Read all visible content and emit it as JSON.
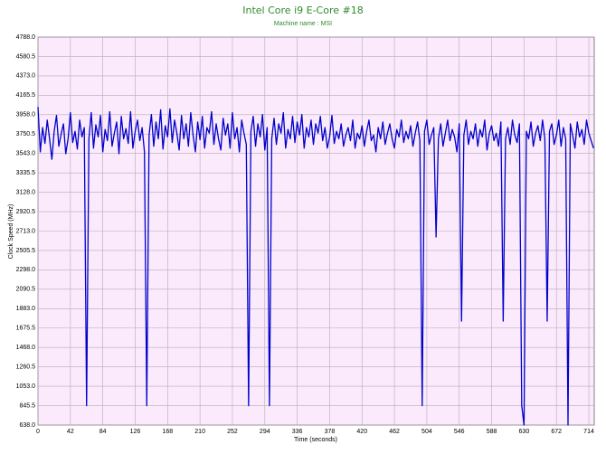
{
  "chart_data": {
    "type": "line",
    "title": "Intel Core i9 E-Core #18",
    "subtitle": "Machine name : MSI",
    "x_label": "Time (seconds)",
    "y_label": "Clock Speed (MHz)",
    "grid": true,
    "xlim": [
      0,
      721
    ],
    "ylim": [
      638,
      4788
    ],
    "xticks": [
      0,
      42,
      84,
      126,
      168,
      210,
      252,
      294,
      336,
      378,
      420,
      462,
      504,
      546,
      588,
      630,
      672,
      714
    ],
    "yticks": [
      {
        "value": 638,
        "label": "638.0"
      },
      845.5,
      {
        "value": 1053,
        "label": "1053.0"
      },
      1260.5,
      {
        "value": 1468,
        "label": "1468.0"
      },
      1675.5,
      {
        "value": 1883,
        "label": "1883.0"
      },
      2090.5,
      {
        "value": 2298,
        "label": "2298.0"
      },
      2505.5,
      {
        "value": 2713,
        "label": "2713.0"
      },
      2920.5,
      {
        "value": 3128,
        "label": "3128.0"
      },
      3335.5,
      {
        "value": 3543,
        "label": "3543.0"
      },
      3750.5,
      {
        "value": 3958,
        "label": "3958.0"
      },
      4165.5,
      {
        "value": 4373,
        "label": "4373.0"
      },
      4580.5,
      {
        "value": 4788,
        "label": "4788.0"
      }
    ],
    "x": [
      0,
      3,
      6,
      9,
      12,
      15,
      18,
      21,
      24,
      27,
      30,
      33,
      36,
      39,
      42,
      45,
      48,
      51,
      54,
      57,
      60,
      63,
      66,
      69,
      72,
      75,
      78,
      81,
      84,
      87,
      90,
      93,
      96,
      99,
      102,
      105,
      108,
      111,
      114,
      117,
      120,
      123,
      126,
      129,
      132,
      135,
      138,
      141,
      144,
      147,
      150,
      153,
      156,
      159,
      162,
      165,
      168,
      171,
      174,
      177,
      180,
      183,
      186,
      189,
      192,
      195,
      198,
      201,
      204,
      207,
      210,
      213,
      216,
      219,
      222,
      225,
      228,
      231,
      234,
      237,
      240,
      243,
      246,
      249,
      252,
      255,
      258,
      261,
      264,
      267,
      270,
      273,
      276,
      279,
      282,
      285,
      288,
      291,
      294,
      297,
      300,
      303,
      306,
      309,
      312,
      315,
      318,
      321,
      324,
      327,
      330,
      333,
      336,
      339,
      342,
      345,
      348,
      351,
      354,
      357,
      360,
      363,
      366,
      369,
      372,
      375,
      378,
      381,
      384,
      387,
      390,
      393,
      396,
      399,
      402,
      405,
      408,
      411,
      414,
      417,
      420,
      423,
      426,
      429,
      432,
      435,
      438,
      441,
      444,
      447,
      450,
      453,
      456,
      459,
      462,
      465,
      468,
      471,
      474,
      477,
      480,
      483,
      486,
      489,
      492,
      495,
      498,
      501,
      504,
      507,
      510,
      513,
      516,
      519,
      522,
      525,
      528,
      531,
      534,
      537,
      540,
      543,
      546,
      549,
      552,
      555,
      558,
      561,
      564,
      567,
      570,
      573,
      576,
      579,
      582,
      585,
      588,
      591,
      594,
      597,
      600,
      603,
      606,
      609,
      612,
      615,
      618,
      621,
      624,
      627,
      630,
      633,
      636,
      639,
      642,
      645,
      648,
      651,
      654,
      657,
      660,
      663,
      666,
      669,
      672,
      675,
      678,
      681,
      684,
      687,
      690,
      693,
      696,
      699,
      702,
      705,
      708,
      711,
      714,
      717,
      720
    ],
    "series": [
      {
        "color": "#0000cc",
        "values": [
          4040,
          3560,
          3820,
          3650,
          3900,
          3700,
          3480,
          3780,
          3950,
          3620,
          3750,
          3860,
          3540,
          3700,
          3980,
          3660,
          3780,
          3590,
          3900,
          3720,
          3820,
          845,
          3700,
          3980,
          3600,
          3850,
          3720,
          3950,
          3560,
          3800,
          3680,
          3990,
          3620,
          3760,
          3880,
          3540,
          3940,
          3700,
          3810,
          3650,
          3990,
          3600,
          3780,
          3900,
          3680,
          3820,
          3560,
          845,
          3740,
          3960,
          3620,
          3880,
          3700,
          4010,
          3590,
          3840,
          3720,
          4020,
          3660,
          3900,
          3760,
          3580,
          3950,
          3700,
          3860,
          3620,
          3980,
          3740,
          3560,
          3880,
          3690,
          3940,
          3600,
          3820,
          3760,
          3990,
          3640,
          3860,
          3700,
          3580,
          3920,
          3740,
          3860,
          3600,
          3980,
          3700,
          3820,
          3560,
          3900,
          3760,
          3640,
          845,
          3780,
          3940,
          3620,
          3860,
          3720,
          3960,
          3580,
          3820,
          845,
          3700,
          3920,
          3640,
          3860,
          3760,
          3980,
          3600,
          3800,
          3700,
          3940,
          3660,
          3880,
          3740,
          3960,
          3600,
          3820,
          3720,
          3900,
          3640,
          3860,
          3760,
          3940,
          3680,
          3820,
          3600,
          3720,
          3950,
          3650,
          3780,
          3700,
          3860,
          3620,
          3740,
          3820,
          3680,
          3900,
          3600,
          3760,
          3700,
          3840,
          3620,
          3780,
          3900,
          3680,
          3740,
          3560,
          3820,
          3700,
          3880,
          3640,
          3760,
          3860,
          3700,
          3600,
          3800,
          3720,
          3900,
          3660,
          3780,
          3700,
          3840,
          3620,
          3760,
          3880,
          3680,
          845,
          3780,
          3900,
          3640,
          3740,
          3820,
          2650,
          3700,
          3860,
          3620,
          3760,
          3900,
          3680,
          3800,
          3720,
          3560,
          3860,
          1750,
          3740,
          3900,
          3640,
          3780,
          3700,
          3860,
          3620,
          3800,
          3720,
          3900,
          3580,
          3760,
          3840,
          3680,
          3760,
          3620,
          3880,
          1750,
          3700,
          3820,
          3640,
          3900,
          3740,
          3660,
          3860,
          845,
          638,
          3780,
          3700,
          3880,
          3620,
          3760,
          3840,
          3680,
          3900,
          3700,
          1750,
          3780,
          3860,
          3640,
          3740,
          3900,
          3620,
          3820,
          3700,
          638,
          3860,
          3740,
          3600,
          3880,
          3720,
          3800,
          3640,
          3900,
          3760,
          3680,
          3600
        ]
      }
    ]
  }
}
